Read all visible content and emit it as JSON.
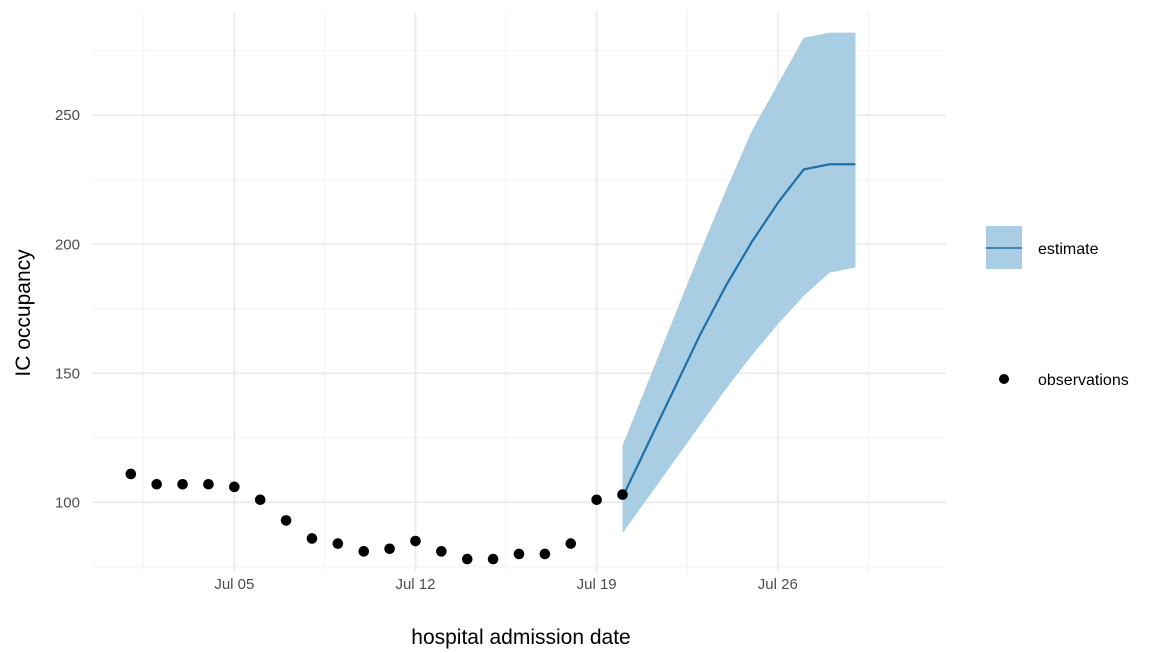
{
  "chart_data": {
    "type": "line",
    "xlabel": "hospital admission date",
    "ylabel": "IC occupancy",
    "x_tick_labels": [
      "Jul 05",
      "Jul 12",
      "Jul 19",
      "Jul 26"
    ],
    "x_tick_dates": [
      "2021-07-05",
      "2021-07-12",
      "2021-07-19",
      "2021-07-26"
    ],
    "y_ticks": [
      100,
      150,
      200,
      250
    ],
    "xlim": [
      "2021-06-29T12:00",
      "2021-08-01T12:00"
    ],
    "ylim": [
      73,
      290
    ],
    "grid": true,
    "legend_position": "right",
    "colors": {
      "estimate_line": "#1f6fa8",
      "ribbon": "#a9cde2",
      "observations": "#000000",
      "grid_major": "#ebebeb",
      "grid_minor": "#f4f4f4",
      "tick_label": "#4d4d4d"
    },
    "series": [
      {
        "name": "observations",
        "kind": "scatter",
        "x": [
          "2021-07-01",
          "2021-07-02",
          "2021-07-03",
          "2021-07-04",
          "2021-07-05",
          "2021-07-06",
          "2021-07-07",
          "2021-07-08",
          "2021-07-09",
          "2021-07-10",
          "2021-07-11",
          "2021-07-12",
          "2021-07-13",
          "2021-07-14",
          "2021-07-15",
          "2021-07-16",
          "2021-07-17",
          "2021-07-18",
          "2021-07-19",
          "2021-07-20"
        ],
        "values": [
          111,
          107,
          107,
          107,
          106,
          101,
          93,
          86,
          84,
          81,
          82,
          85,
          81,
          78,
          78,
          80,
          80,
          84,
          101,
          103
        ]
      },
      {
        "name": "estimate",
        "kind": "line_with_ribbon",
        "x": [
          "2021-07-20",
          "2021-07-21",
          "2021-07-22",
          "2021-07-23",
          "2021-07-24",
          "2021-07-25",
          "2021-07-26",
          "2021-07-27",
          "2021-07-28",
          "2021-07-29"
        ],
        "values": [
          102,
          123,
          144,
          165,
          184,
          201,
          216,
          229,
          231,
          231
        ],
        "lower": [
          88,
          102,
          116,
          130,
          144,
          157,
          169,
          180,
          189,
          191
        ],
        "upper": [
          122,
          147,
          172,
          197,
          221,
          244,
          262,
          280,
          282,
          282
        ]
      }
    ]
  }
}
